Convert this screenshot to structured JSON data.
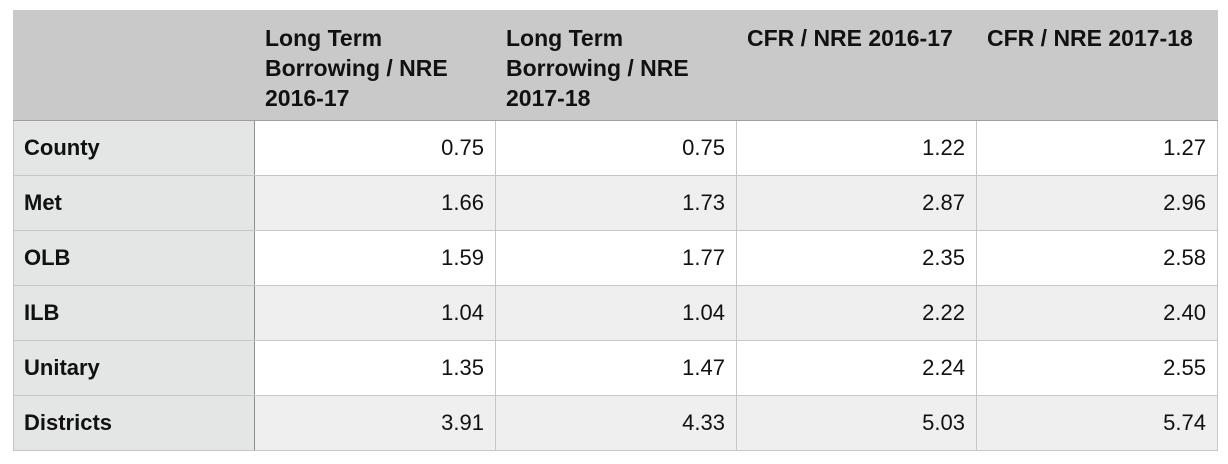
{
  "table": {
    "headers": [
      "",
      "Long Term Borrowing / NRE 2016-17",
      "Long Term Borrowing / NRE 2017-18",
      "CFR / NRE 2016-17",
      "CFR / NRE 2017-18"
    ],
    "rows": [
      {
        "label": "County",
        "values": [
          "0.75",
          "0.75",
          "1.22",
          "1.27"
        ]
      },
      {
        "label": "Met",
        "values": [
          "1.66",
          "1.73",
          "2.87",
          "2.96"
        ]
      },
      {
        "label": "OLB",
        "values": [
          "1.59",
          "1.77",
          "2.35",
          "2.58"
        ]
      },
      {
        "label": "ILB",
        "values": [
          "1.04",
          "1.04",
          "2.22",
          "2.40"
        ]
      },
      {
        "label": "Unitary",
        "values": [
          "1.35",
          "1.47",
          "2.24",
          "2.55"
        ]
      },
      {
        "label": "Districts",
        "values": [
          "3.91",
          "4.33",
          "5.03",
          "5.74"
        ]
      }
    ]
  },
  "colors": {
    "header_bg": "#c9c9c9",
    "row_label_bg": "#e4e5e5",
    "odd_row_bg": "#ffffff",
    "even_row_bg": "#efefef",
    "border": "#c6c6c6"
  }
}
